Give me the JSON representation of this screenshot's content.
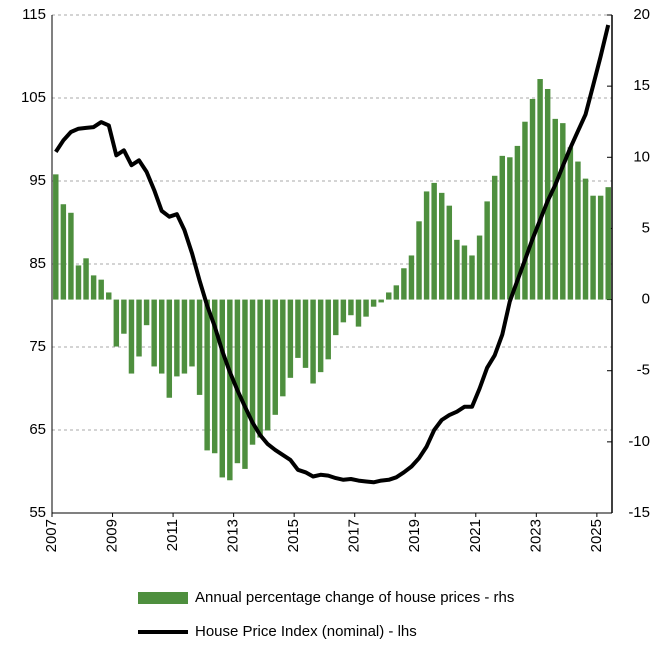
{
  "chart_data": {
    "type": "bar",
    "x": [
      2007.125,
      2007.375,
      2007.625,
      2007.875,
      2008.125,
      2008.375,
      2008.625,
      2008.875,
      2009.125,
      2009.375,
      2009.625,
      2009.875,
      2010.125,
      2010.375,
      2010.625,
      2010.875,
      2011.125,
      2011.375,
      2011.625,
      2011.875,
      2012.125,
      2012.375,
      2012.625,
      2012.875,
      2013.125,
      2013.375,
      2013.625,
      2013.875,
      2014.125,
      2014.375,
      2014.625,
      2014.875,
      2015.125,
      2015.375,
      2015.625,
      2015.875,
      2016.125,
      2016.375,
      2016.625,
      2016.875,
      2017.125,
      2017.375,
      2017.625,
      2017.875,
      2018.125,
      2018.375,
      2018.625,
      2018.875,
      2019.125,
      2019.375,
      2019.625,
      2019.875,
      2020.125,
      2020.375,
      2020.625,
      2020.875,
      2021.125,
      2021.375,
      2021.625,
      2021.875,
      2022.125,
      2022.375,
      2022.625,
      2022.875,
      2023.125,
      2023.375,
      2023.625,
      2023.875,
      2024.125,
      2024.375,
      2024.625,
      2024.875,
      2025.125,
      2025.375
    ],
    "series": [
      {
        "name": "Annual percentage change of house prices - rhs",
        "type": "bar",
        "axis": "y2",
        "color": "#4e8f3e",
        "values": [
          8.8,
          6.7,
          6.1,
          2.4,
          2.9,
          1.7,
          1.4,
          0.5,
          -3.3,
          -2.4,
          -5.2,
          -4.0,
          -1.8,
          -4.7,
          -5.2,
          -6.9,
          -5.4,
          -5.2,
          -4.7,
          -6.7,
          -10.6,
          -10.8,
          -12.5,
          -12.7,
          -11.5,
          -11.9,
          -10.2,
          -9.7,
          -9.2,
          -8.1,
          -6.8,
          -5.5,
          -4.1,
          -4.8,
          -5.9,
          -5.1,
          -4.2,
          -2.5,
          -1.6,
          -1.1,
          -1.9,
          -1.2,
          -0.5,
          -0.2,
          0.5,
          1.0,
          2.2,
          3.1,
          5.5,
          7.6,
          8.2,
          7.5,
          6.6,
          4.2,
          3.8,
          3.1,
          4.5,
          6.9,
          8.7,
          10.1,
          10.0,
          10.8,
          12.5,
          14.1,
          15.5,
          14.8,
          12.7,
          12.4,
          10.7,
          9.7,
          8.5,
          7.3,
          7.3,
          7.9
        ]
      },
      {
        "name": "House Price Index (nominal) - lhs",
        "type": "line",
        "color": "#000000",
        "values": [
          98.5,
          99.9,
          100.9,
          101.3,
          101.4,
          101.5,
          102.1,
          101.7,
          98.1,
          98.7,
          96.9,
          97.5,
          96.1,
          93.9,
          91.4,
          90.7,
          91.0,
          89.1,
          86.3,
          83.0,
          80.0,
          77.5,
          74.5,
          72.0,
          69.8,
          67.8,
          65.9,
          64.4,
          63.3,
          62.6,
          62.0,
          61.4,
          60.2,
          59.9,
          59.4,
          59.6,
          59.5,
          59.2,
          59.0,
          59.1,
          58.9,
          58.8,
          58.7,
          58.9,
          59.0,
          59.3,
          59.9,
          60.6,
          61.6,
          63.0,
          65.0,
          66.2,
          66.8,
          67.2,
          67.8,
          67.8,
          70.0,
          72.5,
          74.0,
          76.5,
          80.5,
          83.0,
          85.5,
          88.0,
          90.3,
          92.6,
          94.5,
          96.8,
          99.0,
          101.0,
          103.0,
          106.5,
          110.0,
          113.8
        ]
      }
    ],
    "xlim": [
      2007,
      2025.5
    ],
    "xticks": [
      2007,
      2009,
      2011,
      2013,
      2015,
      2017,
      2019,
      2021,
      2023,
      2025
    ],
    "ylim": [
      55,
      115
    ],
    "yticks": [
      55,
      65,
      75,
      85,
      95,
      105,
      115
    ],
    "y2lim": [
      -15,
      20
    ],
    "y2ticks": [
      -15,
      -10,
      -5,
      0,
      5,
      10,
      15,
      20
    ],
    "grid": true
  }
}
